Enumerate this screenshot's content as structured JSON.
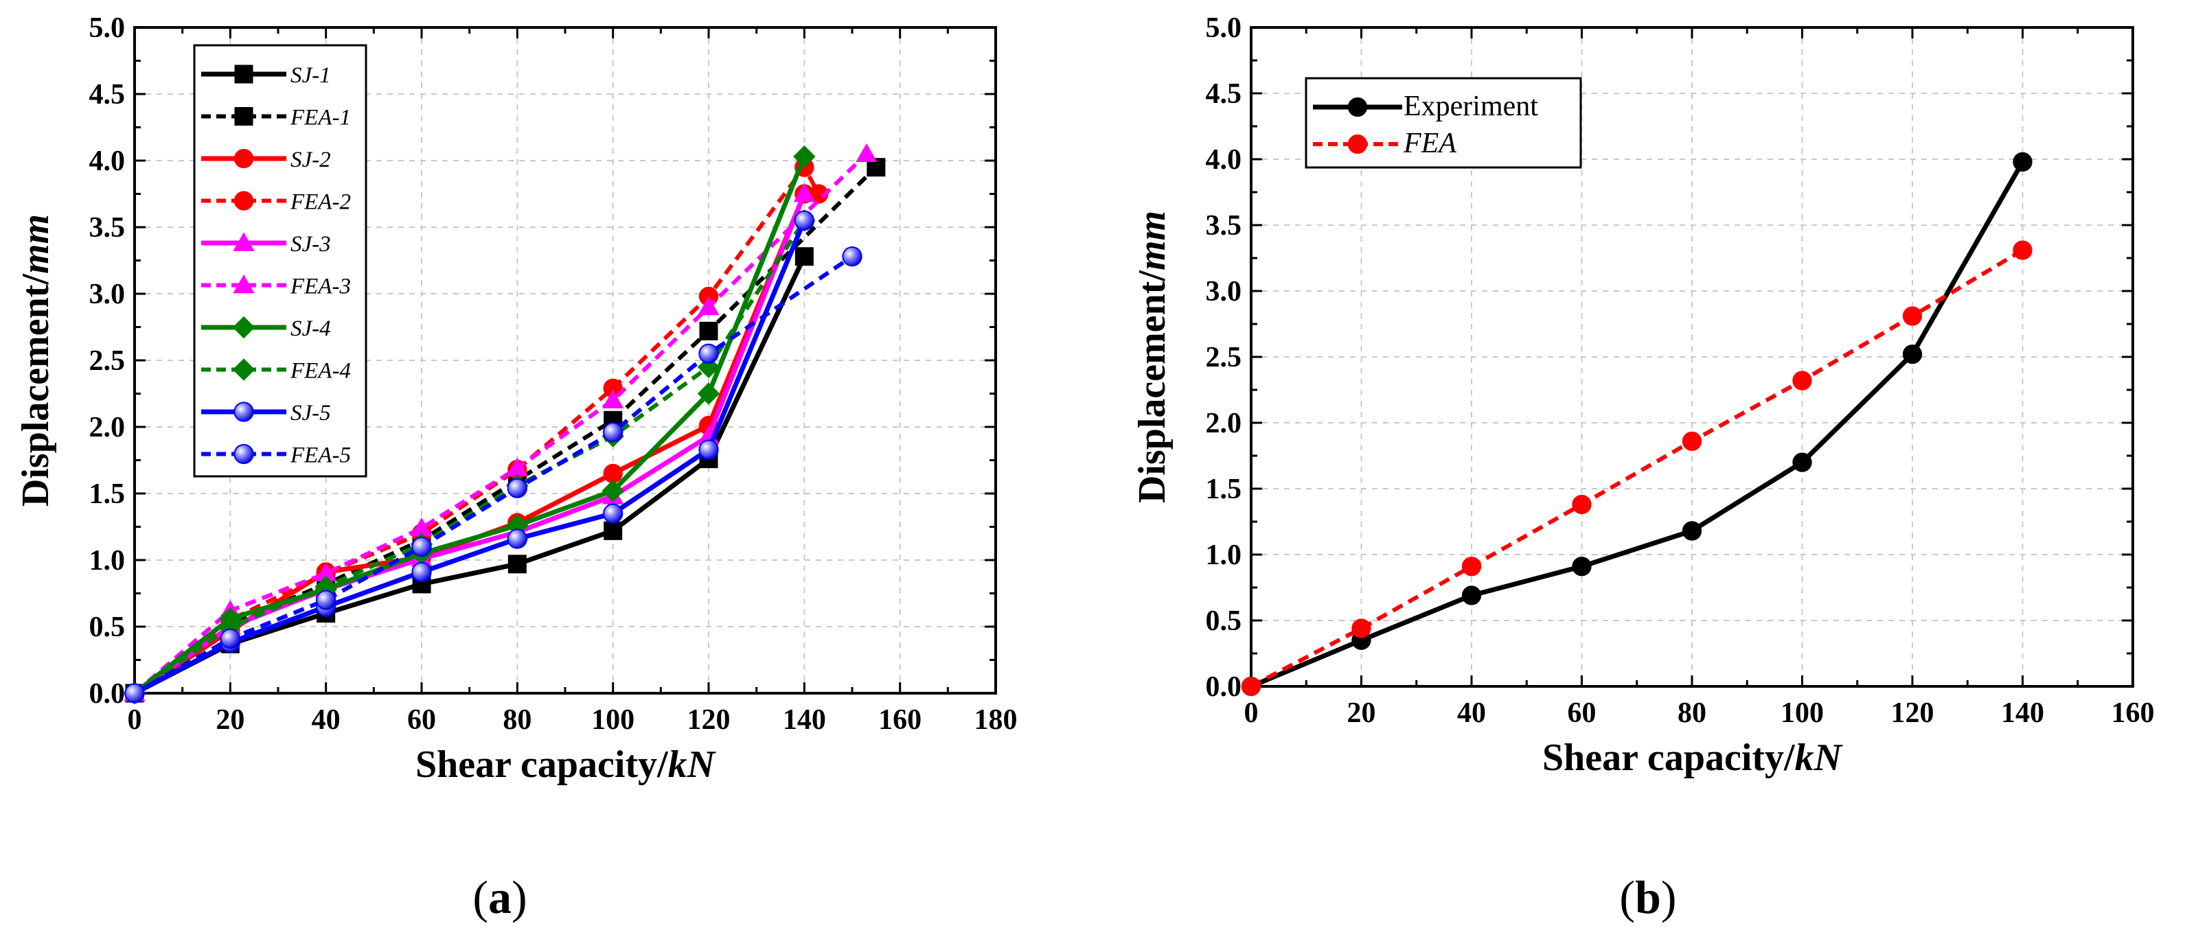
{
  "chart_data": [
    {
      "type": "line",
      "caption_letter": "a",
      "xlabel_main": "Shear capacity/",
      "xlabel_unit": "kN",
      "ylabel_main": "Displacement/",
      "ylabel_unit": "mm",
      "xlim": [
        0,
        180
      ],
      "ylim": [
        0,
        5.0
      ],
      "x_ticks": [
        "0",
        "20",
        "40",
        "60",
        "80",
        "100",
        "120",
        "140",
        "160",
        "180"
      ],
      "y_ticks": [
        "0.0",
        "0.5",
        "1.0",
        "1.5",
        "2.0",
        "2.5",
        "3.0",
        "3.5",
        "4.0",
        "4.5",
        "5.0"
      ],
      "grid": true,
      "legend_position": "top-left",
      "series": [
        {
          "name": "SJ-1",
          "color": "#000000",
          "dash": "solid",
          "marker": "square",
          "x": [
            0,
            20,
            40,
            60,
            80,
            100,
            120,
            140
          ],
          "y": [
            0,
            0.37,
            0.6,
            0.82,
            0.97,
            1.22,
            1.76,
            3.28
          ]
        },
        {
          "name": "FEA-1",
          "color": "#000000",
          "dash": "dashed",
          "marker": "square",
          "x": [
            0,
            20,
            40,
            60,
            80,
            100,
            120,
            155
          ],
          "y": [
            0,
            0.52,
            0.82,
            1.15,
            1.6,
            2.05,
            2.72,
            3.95
          ]
        },
        {
          "name": "SJ-2",
          "color": "#ff0000",
          "dash": "solid",
          "marker": "circle",
          "x": [
            0,
            20,
            40,
            60,
            80,
            100,
            120,
            140
          ],
          "y": [
            0,
            0.47,
            0.91,
            1.02,
            1.28,
            1.65,
            2.01,
            3.75
          ]
        },
        {
          "name": "FEA-2",
          "color": "#ff0000",
          "dash": "dashed",
          "marker": "circle",
          "x": [
            0,
            20,
            40,
            60,
            80,
            100,
            120,
            140,
            143
          ],
          "y": [
            0,
            0.55,
            0.9,
            1.2,
            1.68,
            2.29,
            2.98,
            3.95,
            3.75
          ]
        },
        {
          "name": "SJ-3",
          "color": "#ff00ff",
          "dash": "solid",
          "marker": "triangle",
          "x": [
            0,
            20,
            40,
            60,
            80,
            100,
            120,
            140
          ],
          "y": [
            0,
            0.5,
            0.78,
            1.01,
            1.21,
            1.48,
            1.93,
            3.75
          ]
        },
        {
          "name": "FEA-3",
          "color": "#ff00ff",
          "dash": "dashed",
          "marker": "triangle",
          "x": [
            0,
            20,
            40,
            60,
            80,
            100,
            120,
            153
          ],
          "y": [
            0,
            0.62,
            0.9,
            1.24,
            1.69,
            2.2,
            2.9,
            4.05
          ]
        },
        {
          "name": "SJ-4",
          "color": "#008000",
          "dash": "solid",
          "marker": "diamond",
          "x": [
            0,
            20,
            40,
            60,
            80,
            100,
            120,
            140
          ],
          "y": [
            0,
            0.56,
            0.78,
            1.05,
            1.26,
            1.52,
            2.25,
            4.03
          ]
        },
        {
          "name": "FEA-4",
          "color": "#008000",
          "dash": "dashed",
          "marker": "diamond",
          "x": [
            0,
            20,
            40,
            60,
            80,
            100,
            120,
            140
          ],
          "y": [
            0,
            0.5,
            0.8,
            1.12,
            1.56,
            1.93,
            2.45,
            3.55
          ]
        },
        {
          "name": "SJ-5",
          "color": "#0000ff",
          "dash": "solid",
          "marker": "sphere",
          "x": [
            0,
            20,
            40,
            60,
            80,
            100,
            120,
            140
          ],
          "y": [
            0,
            0.38,
            0.65,
            0.91,
            1.16,
            1.35,
            1.83,
            3.55
          ]
        },
        {
          "name": "FEA-5",
          "color": "#0000ff",
          "dash": "dashed",
          "marker": "sphere",
          "x": [
            0,
            20,
            40,
            60,
            80,
            100,
            120,
            150
          ],
          "y": [
            0,
            0.41,
            0.7,
            1.1,
            1.54,
            1.96,
            2.55,
            3.28
          ]
        }
      ]
    },
    {
      "type": "line",
      "caption_letter": "b",
      "xlabel_main": "Shear capacity/",
      "xlabel_unit": "kN",
      "ylabel_main": "Displacement/",
      "ylabel_unit": "mm",
      "xlim": [
        0,
        160
      ],
      "ylim": [
        0,
        5.0
      ],
      "x_ticks": [
        "0",
        "20",
        "40",
        "60",
        "80",
        "100",
        "120",
        "140",
        "160"
      ],
      "y_ticks": [
        "0.0",
        "0.5",
        "1.0",
        "1.5",
        "2.0",
        "2.5",
        "3.0",
        "3.5",
        "4.0",
        "4.5",
        "5.0"
      ],
      "grid": true,
      "legend_position": "top-left",
      "series": [
        {
          "name": "Experiment",
          "color": "#000000",
          "dash": "solid",
          "marker": "circle",
          "italic": false,
          "x": [
            0,
            20,
            40,
            60,
            80,
            100,
            120,
            140
          ],
          "y": [
            0,
            0.35,
            0.69,
            0.91,
            1.18,
            1.7,
            2.52,
            3.98
          ]
        },
        {
          "name": "FEA",
          "color": "#ff0000",
          "dash": "dashed",
          "marker": "circle",
          "italic": true,
          "x": [
            0,
            20,
            40,
            60,
            80,
            100,
            120,
            140
          ],
          "y": [
            0,
            0.44,
            0.91,
            1.38,
            1.86,
            2.32,
            2.81,
            3.31
          ]
        }
      ]
    }
  ]
}
